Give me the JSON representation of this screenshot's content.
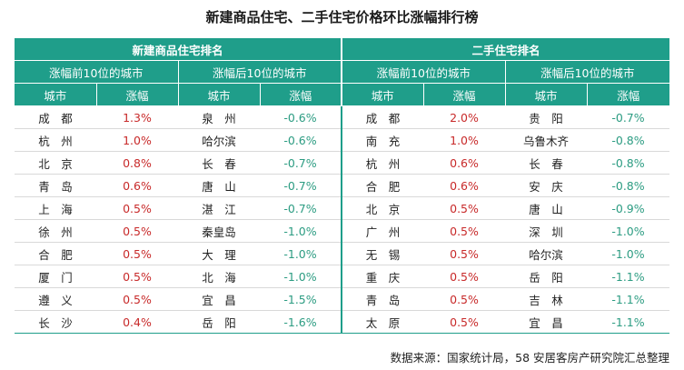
{
  "title": "新建商品住宅、二手住宅价格环比涨幅排行榜",
  "sections": [
    "新建商品住宅排名",
    "二手住宅排名"
  ],
  "subsections": [
    "涨幅前10位的城市",
    "涨幅后10位的城市",
    "涨幅前10位的城市",
    "涨幅后10位的城市"
  ],
  "col_city": "城市",
  "col_change": "涨幅",
  "rows": [
    {
      "a_city": "成　都",
      "a_val": "1.3%",
      "b_city": "泉　州",
      "b_val": "-0.6%",
      "c_city": "成　都",
      "c_val": "2.0%",
      "d_city": "贵　阳",
      "d_val": "-0.7%"
    },
    {
      "a_city": "杭　州",
      "a_val": "1.0%",
      "b_city": "哈尔滨",
      "b_val": "-0.6%",
      "c_city": "南　充",
      "c_val": "1.0%",
      "d_city": "乌鲁木齐",
      "d_val": "-0.8%"
    },
    {
      "a_city": "北　京",
      "a_val": "0.8%",
      "b_city": "长　春",
      "b_val": "-0.7%",
      "c_city": "杭　州",
      "c_val": "0.6%",
      "d_city": "长　春",
      "d_val": "-0.8%"
    },
    {
      "a_city": "青　岛",
      "a_val": "0.6%",
      "b_city": "唐　山",
      "b_val": "-0.7%",
      "c_city": "合　肥",
      "c_val": "0.6%",
      "d_city": "安　庆",
      "d_val": "-0.8%"
    },
    {
      "a_city": "上　海",
      "a_val": "0.5%",
      "b_city": "湛　江",
      "b_val": "-0.7%",
      "c_city": "北　京",
      "c_val": "0.5%",
      "d_city": "唐　山",
      "d_val": "-0.9%"
    },
    {
      "a_city": "徐　州",
      "a_val": "0.5%",
      "b_city": "秦皇岛",
      "b_val": "-1.0%",
      "c_city": "广　州",
      "c_val": "0.5%",
      "d_city": "深　圳",
      "d_val": "-1.0%"
    },
    {
      "a_city": "合　肥",
      "a_val": "0.5%",
      "b_city": "大　理",
      "b_val": "-1.0%",
      "c_city": "无　锡",
      "c_val": "0.5%",
      "d_city": "哈尔滨",
      "d_val": "-1.0%"
    },
    {
      "a_city": "厦　门",
      "a_val": "0.5%",
      "b_city": "北　海",
      "b_val": "-1.0%",
      "c_city": "重　庆",
      "c_val": "0.5%",
      "d_city": "岳　阳",
      "d_val": "-1.1%"
    },
    {
      "a_city": "遵　义",
      "a_val": "0.5%",
      "b_city": "宜　昌",
      "b_val": "-1.5%",
      "c_city": "青　岛",
      "c_val": "0.5%",
      "d_city": "吉　林",
      "d_val": "-1.1%"
    },
    {
      "a_city": "长　沙",
      "a_val": "0.4%",
      "b_city": "岳　阳",
      "b_val": "-1.6%",
      "c_city": "太　原",
      "c_val": "0.5%",
      "d_city": "宜　昌",
      "d_val": "-1.1%"
    }
  ],
  "source": "数据来源：国家统计局，58 安居客房产研究院汇总整理",
  "colors": {
    "header": "#1f9e8a",
    "up": "#c82a2a",
    "down": "#2c9c82"
  }
}
